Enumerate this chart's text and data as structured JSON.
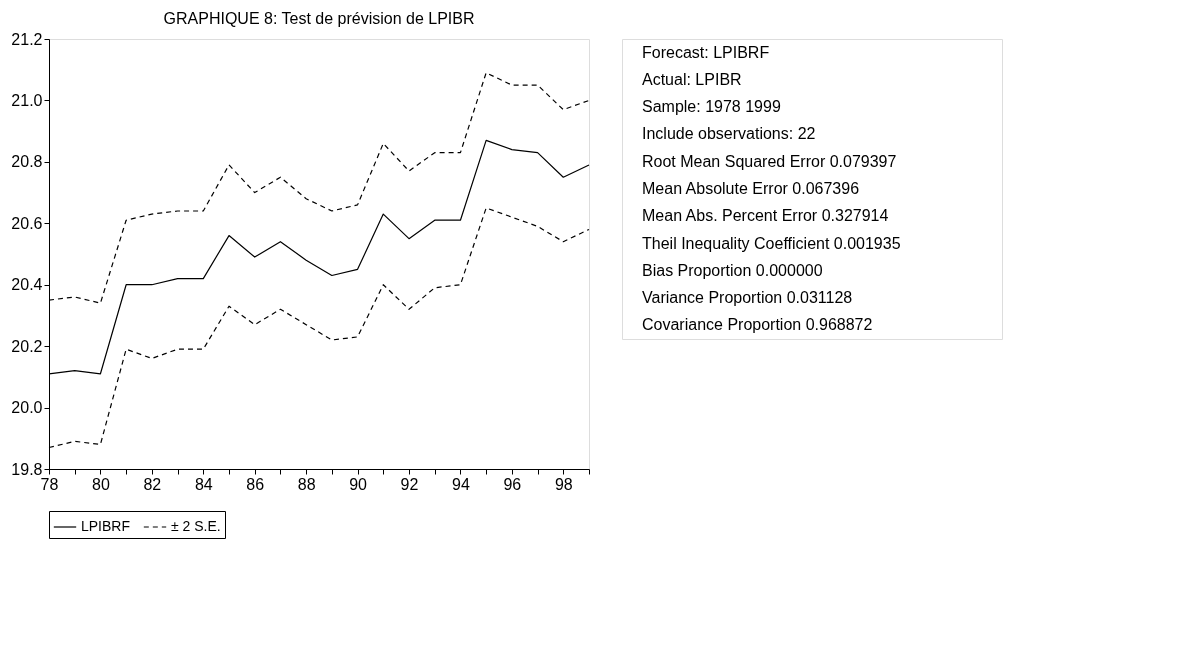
{
  "chart_data": [
    {
      "type": "line",
      "title": "GRAPHIQUE 8: Test de prévision de LPIBR",
      "x": [
        78,
        79,
        80,
        81,
        82,
        83,
        84,
        85,
        86,
        87,
        88,
        89,
        90,
        91,
        92,
        93,
        94,
        95,
        96,
        97,
        98,
        99
      ],
      "series": [
        {
          "name": "LPIBRF",
          "color": "#000000",
          "line_style": "solid",
          "values": [
            20.11,
            20.12,
            20.11,
            20.4,
            20.4,
            20.42,
            20.42,
            20.56,
            20.49,
            20.54,
            20.48,
            20.43,
            20.45,
            20.63,
            20.55,
            20.61,
            20.61,
            20.87,
            20.84,
            20.83,
            20.75,
            20.79
          ]
        },
        {
          "name": "± 2 S.E.",
          "color": "#000000",
          "line_style": "dashed",
          "values": [
            20.35,
            20.36,
            20.34,
            20.61,
            20.63,
            20.64,
            20.64,
            20.79,
            20.7,
            20.75,
            20.68,
            20.64,
            20.66,
            20.86,
            20.77,
            20.83,
            20.83,
            21.09,
            21.05,
            21.05,
            20.97,
            21.0
          ]
        },
        {
          "color": "#000000",
          "line_style": "dashed",
          "values": [
            19.87,
            19.89,
            19.88,
            20.19,
            20.16,
            20.19,
            20.19,
            20.33,
            20.27,
            20.32,
            20.27,
            20.22,
            20.23,
            20.4,
            20.32,
            20.39,
            20.4,
            20.65,
            20.62,
            20.59,
            20.54,
            20.58
          ]
        }
      ],
      "xlim": [
        78,
        99
      ],
      "xticks": [
        78,
        {
          "value": 79,
          "label": null
        },
        80,
        {
          "value": 81,
          "label": null
        },
        82,
        {
          "value": 83,
          "label": null
        },
        84,
        {
          "value": 85,
          "label": null
        },
        86,
        {
          "value": 87,
          "label": null
        },
        88,
        {
          "value": 89,
          "label": null
        },
        90,
        {
          "value": 91,
          "label": null
        },
        92,
        {
          "value": 93,
          "label": null
        },
        94,
        {
          "value": 95,
          "label": null
        },
        96,
        {
          "value": 97,
          "label": null
        },
        98,
        {
          "value": 99,
          "label": null
        }
      ],
      "ylim": [
        19.8,
        21.2
      ],
      "yticks": [
        {
          "value": 19.8,
          "label": "19.8"
        },
        {
          "value": 20.0,
          "label": "20.0"
        },
        {
          "value": 20.2,
          "label": "20.2"
        },
        {
          "value": 20.4,
          "label": "20.4"
        },
        {
          "value": 20.6,
          "label": "20.6"
        },
        {
          "value": 20.8,
          "label": "20.8"
        },
        {
          "value": 21.0,
          "label": "21.0"
        },
        {
          "value": 21.2,
          "label": "21.2"
        }
      ],
      "grid": false,
      "legend": "bottom"
    },
    {
      "type": "other",
      "annotations": [
        "Forecast: LPIBRF",
        "Actual: LPIBR",
        "Sample: 1978 1999",
        "Include observations: 22",
        "Root Mean Squared Error 0.079397",
        "Mean Absolute Error 0.067396",
        "Mean Abs. Percent Error 0.327914",
        "Theil Inequality Coefficient 0.001935",
        "Bias Proportion 0.000000",
        "Variance Proportion 0.031128",
        "Covariance Proportion 0.968872"
      ]
    }
  ]
}
